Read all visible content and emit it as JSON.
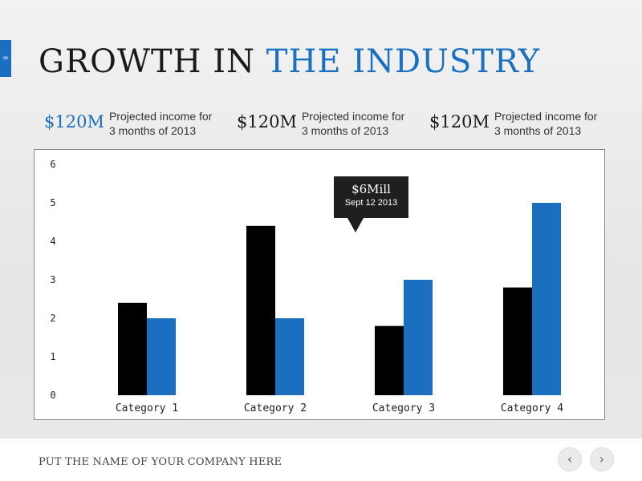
{
  "side_tab": {
    "icon": "menu-lines-icon",
    "glyph": "="
  },
  "title": {
    "main": "GROWTH IN",
    "accent": "THE INDUSTRY"
  },
  "stats": [
    {
      "value": "$120M",
      "description_line1": "Projected income for",
      "description_line2": "3 months of 2013"
    },
    {
      "value": "$120M",
      "description_line1": "Projected income for",
      "description_line2": "3 months of 2013"
    },
    {
      "value": "$120M",
      "description_line1": "Projected income for",
      "description_line2": "3 months of 2013"
    }
  ],
  "chart_data": {
    "type": "bar",
    "categories": [
      "Category 1",
      "Category 2",
      "Category 3",
      "Category 4"
    ],
    "series": [
      {
        "values": [
          2.4,
          4.4,
          1.8,
          2.8
        ],
        "color": "#000000"
      },
      {
        "values": [
          2.0,
          2.0,
          3.0,
          5.0
        ],
        "color": "#1a6fc1"
      }
    ],
    "yticks": [
      "0",
      "1",
      "2",
      "3",
      "4",
      "5",
      "6"
    ],
    "ylim": [
      0,
      6
    ],
    "grid": false,
    "title": "",
    "xlabel": "",
    "ylabel": ""
  },
  "callout": {
    "amount": "$6Mill",
    "date": "Sept 12 2013"
  },
  "footer": {
    "company": "PUT THE NAME OF YOUR COMPANY HERE",
    "prev_icon": "chevron-left-icon",
    "prev_glyph": "‹",
    "next_icon": "chevron-right-icon",
    "next_glyph": "›"
  },
  "colors": {
    "accent": "#1a6fc1",
    "text": "#1a1a1a",
    "bar_dark": "#000000",
    "bar_blue": "#1a6fc1"
  }
}
